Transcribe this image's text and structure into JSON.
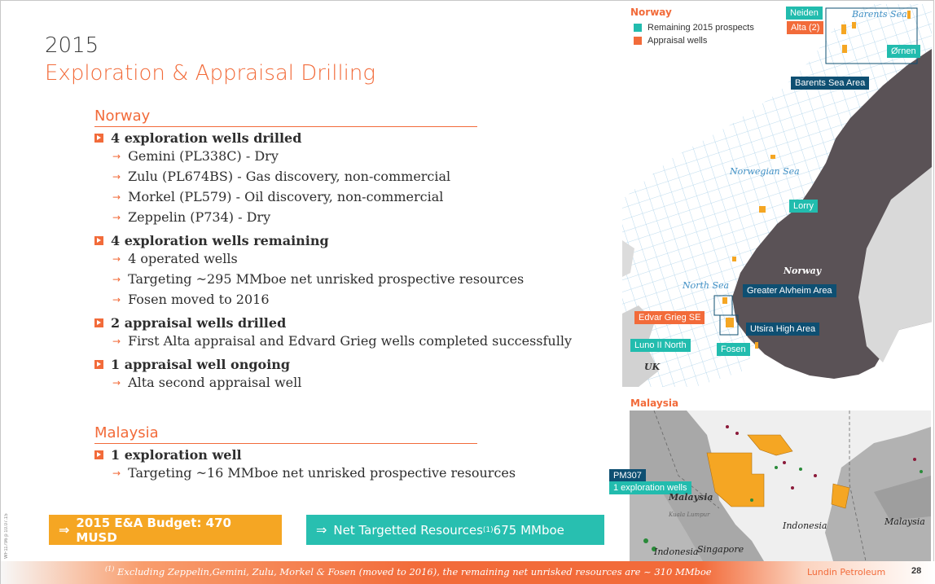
{
  "slide": {
    "year": "2015",
    "title": "Exploration & Appraisal Drilling",
    "side_code": "WF11796 p 10.07.15",
    "page_number": "28",
    "company": "Lundin Petroleum",
    "footnote_marker": "(1)",
    "footnote": " Excluding Zeppelin,Gemini, Zulu, Morkel & Fosen (moved to 2016), the remaining net unrisked resources are ~ 310 MMboe"
  },
  "norway": {
    "heading": "Norway",
    "bullets": [
      {
        "head": "4 exploration wells drilled",
        "subs": [
          "Gemini (PL338C) - Dry",
          "Zulu (PL674BS) - Gas discovery, non-commercial",
          "Morkel (PL579) - Oil discovery, non-commercial",
          "Zeppelin (P734) - Dry"
        ]
      },
      {
        "head": "4 exploration wells remaining",
        "subs": [
          "4 operated wells",
          "Targeting ~295 MMboe net unrisked prospective resources",
          "Fosen moved to 2016"
        ]
      },
      {
        "head": "2 appraisal wells drilled",
        "subs": [
          "First Alta appraisal and Edvard Grieg wells completed successfully"
        ]
      },
      {
        "head": "1 appraisal well ongoing",
        "subs": [
          "Alta second appraisal well"
        ]
      }
    ]
  },
  "malaysia": {
    "heading": "Malaysia",
    "bullets": [
      {
        "head": "1 exploration well",
        "subs": [
          "Targeting ~16 MMboe net unrisked prospective resources"
        ]
      }
    ]
  },
  "buttons": {
    "arrow": "⇒",
    "budget": "2015 E&A Budget: 470 MUSD",
    "resources_prefix": "Net Targetted Resources",
    "resources_sup": "(1)",
    "resources_suffix": " 675 MMboe"
  },
  "map_norway": {
    "title": "Norway",
    "legend": [
      {
        "label": "Remaining 2015 prospects",
        "color": "#22bcae"
      },
      {
        "label": "Appraisal wells",
        "color": "#f26b3a"
      }
    ],
    "tags": {
      "neiden": "Neiden",
      "alta": "Alta (2)",
      "ornen": "Ørnen",
      "barents_area": "Barents Sea Area",
      "lorry": "Lorry",
      "greater_alvheim": "Greater Alvheim Area",
      "edvar_grieg": "Edvar Grieg SE",
      "utsira": "Utsira High Area",
      "luno": "Luno II North",
      "fosen": "Fosen"
    },
    "seas": {
      "barents": "Barents Sea",
      "norwegian": "Norwegian Sea",
      "north": "North Sea"
    },
    "land": {
      "norway": "Norway",
      "uk": "UK"
    }
  },
  "map_malaysia": {
    "title": "Malaysia",
    "tag_block": "PM307",
    "tag_wells": "1 exploration wells",
    "land": {
      "malaysia_west": "Malaysia",
      "kuala_lumpur": "Kuala Lumpur",
      "indonesia_south": "Indonesia",
      "singapore": "Singapore",
      "indonesia_east": "Indonesia",
      "malaysia_east": "Malaysia"
    }
  },
  "colors": {
    "accent": "#f26b3a",
    "teal": "#22bcae",
    "amber": "#f5a623",
    "navy": "#0e4f72",
    "land_dark": "#5a5256",
    "sea_grid": "#9fcbe6"
  }
}
